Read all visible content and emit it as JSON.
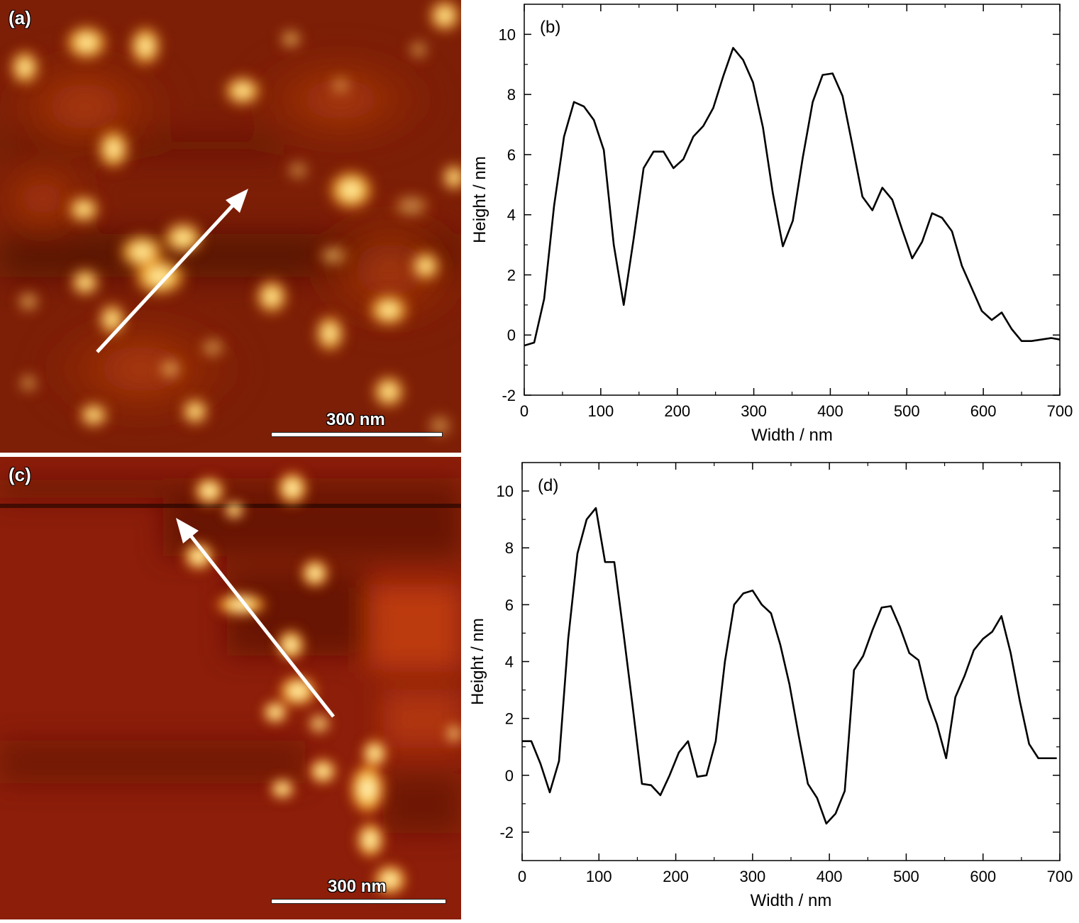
{
  "panels": {
    "a": {
      "tag": "(a)",
      "scalebar": "300 nm"
    },
    "c": {
      "tag": "(c)",
      "scalebar": "300 nm"
    }
  },
  "colors": {
    "line": "#000000",
    "afm_dark": "#5a1204",
    "afm_mid": "#9a2a0a",
    "afm_bright": "#ffe9a0",
    "arrow": "#ffffff"
  },
  "chart_data": [
    {
      "id": "b",
      "type": "line",
      "panel_label": "(b)",
      "xlabel": "Width / nm",
      "ylabel": "Height / nm",
      "xlim": [
        0,
        700
      ],
      "ylim": [
        -2,
        11
      ],
      "xticks": [
        0,
        100,
        200,
        300,
        400,
        500,
        600,
        700
      ],
      "yticks": [
        -2,
        0,
        2,
        4,
        6,
        8,
        10
      ],
      "series": [
        {
          "x": [
            0,
            13,
            26,
            39,
            52,
            65,
            78,
            91,
            104,
            117,
            130,
            143,
            156,
            169,
            182,
            195,
            208,
            221,
            234,
            247,
            260,
            273,
            286,
            299,
            312,
            325,
            338,
            351,
            364,
            377,
            390,
            403,
            416,
            429,
            442,
            455,
            468,
            481,
            494,
            507,
            520,
            533,
            546,
            559,
            572,
            585,
            598,
            611,
            624,
            637,
            650,
            663,
            676,
            689,
            700
          ],
          "y": [
            -0.35,
            -0.25,
            1.2,
            4.3,
            6.6,
            7.75,
            7.6,
            7.15,
            6.15,
            3.0,
            1.0,
            3.2,
            5.55,
            6.1,
            6.1,
            5.55,
            5.85,
            6.6,
            6.95,
            7.55,
            8.6,
            9.55,
            9.15,
            8.4,
            6.9,
            4.7,
            2.95,
            3.8,
            5.9,
            7.75,
            8.65,
            8.7,
            7.95,
            6.3,
            4.6,
            4.15,
            4.9,
            4.5,
            3.5,
            2.55,
            3.1,
            4.05,
            3.9,
            3.45,
            2.3,
            1.55,
            0.8,
            0.5,
            0.75,
            0.2,
            -0.2,
            -0.2,
            -0.15,
            -0.1,
            -0.15
          ]
        }
      ]
    },
    {
      "id": "d",
      "type": "line",
      "panel_label": "(d)",
      "xlabel": "Width / nm",
      "ylabel": "Height / nm",
      "xlim": [
        0,
        700
      ],
      "ylim": [
        -3,
        11
      ],
      "xticks": [
        0,
        100,
        200,
        300,
        400,
        500,
        600,
        700
      ],
      "yticks": [
        -2,
        0,
        2,
        4,
        6,
        8,
        10
      ],
      "series": [
        {
          "x": [
            0,
            12,
            24,
            36,
            48,
            60,
            72,
            84,
            96,
            108,
            120,
            132,
            144,
            156,
            168,
            180,
            192,
            204,
            216,
            228,
            240,
            252,
            264,
            276,
            288,
            300,
            312,
            324,
            336,
            348,
            360,
            372,
            384,
            396,
            408,
            420,
            432,
            444,
            456,
            468,
            480,
            492,
            504,
            516,
            528,
            540,
            552,
            564,
            576,
            588,
            600,
            612,
            624,
            636,
            648,
            660,
            672,
            684,
            696
          ],
          "y": [
            1.2,
            1.2,
            0.4,
            -0.6,
            0.5,
            4.8,
            7.8,
            9.0,
            9.4,
            7.5,
            7.5,
            5.0,
            2.4,
            -0.3,
            -0.35,
            -0.7,
            0.0,
            0.8,
            1.2,
            -0.05,
            0.0,
            1.2,
            4.0,
            6.0,
            6.4,
            6.5,
            6.0,
            5.7,
            4.6,
            3.2,
            1.4,
            -0.3,
            -0.8,
            -1.7,
            -1.35,
            -0.55,
            3.7,
            4.2,
            5.1,
            5.9,
            5.95,
            5.2,
            4.3,
            4.05,
            2.7,
            1.8,
            0.6,
            2.75,
            3.5,
            4.4,
            4.8,
            5.05,
            5.6,
            4.3,
            2.6,
            1.1,
            0.6,
            0.6,
            0.6
          ]
        }
      ]
    }
  ]
}
